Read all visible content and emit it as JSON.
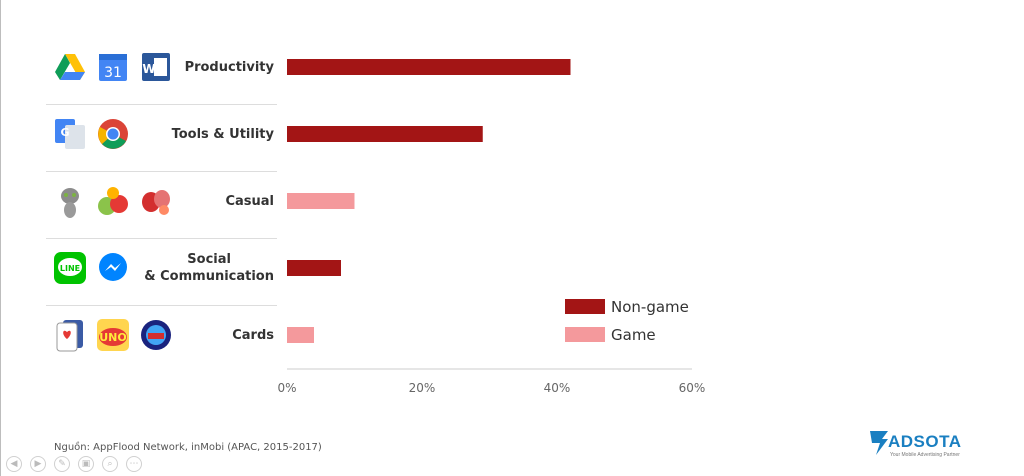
{
  "chart_data": {
    "type": "bar",
    "orientation": "horizontal",
    "categories": [
      "Productivity",
      "Tools & Utility",
      "Casual",
      "Social\n& Communication",
      "Cards"
    ],
    "category_type": [
      "Non-game",
      "Non-game",
      "Game",
      "Non-game",
      "Game"
    ],
    "values": [
      42,
      29,
      10,
      8,
      4
    ],
    "xlim": [
      0,
      60
    ],
    "xticks": [
      "0%",
      "20%",
      "40%",
      "60%"
    ],
    "legend": [
      {
        "name": "Non-game",
        "color": "#a31515"
      },
      {
        "name": "Game",
        "color": "#f4999c"
      }
    ],
    "legend_position": "lower-right",
    "grid": false
  },
  "source": "Nguồn: AppFlood Network, inMobi (APAC, 2015-2017)",
  "logo": {
    "text": "ADSOTA",
    "tagline": "Your Mobile Advertising Partner"
  },
  "icons": [
    [
      "google-drive-icon",
      "google-calendar-icon",
      "microsoft-word-icon"
    ],
    [
      "google-translate-icon",
      "chrome-icon"
    ],
    [
      "talking-tom-icon",
      "fruit-game-icon",
      "candy-crush-icon"
    ],
    [
      "line-icon",
      "messenger-icon"
    ],
    [
      "solitaire-icon",
      "uno-icon",
      "pirate-game-icon"
    ]
  ],
  "colors": {
    "non_game": "#a31515",
    "game": "#f4999c",
    "axis": "#cccccc",
    "logo": "#1a7fc1"
  }
}
